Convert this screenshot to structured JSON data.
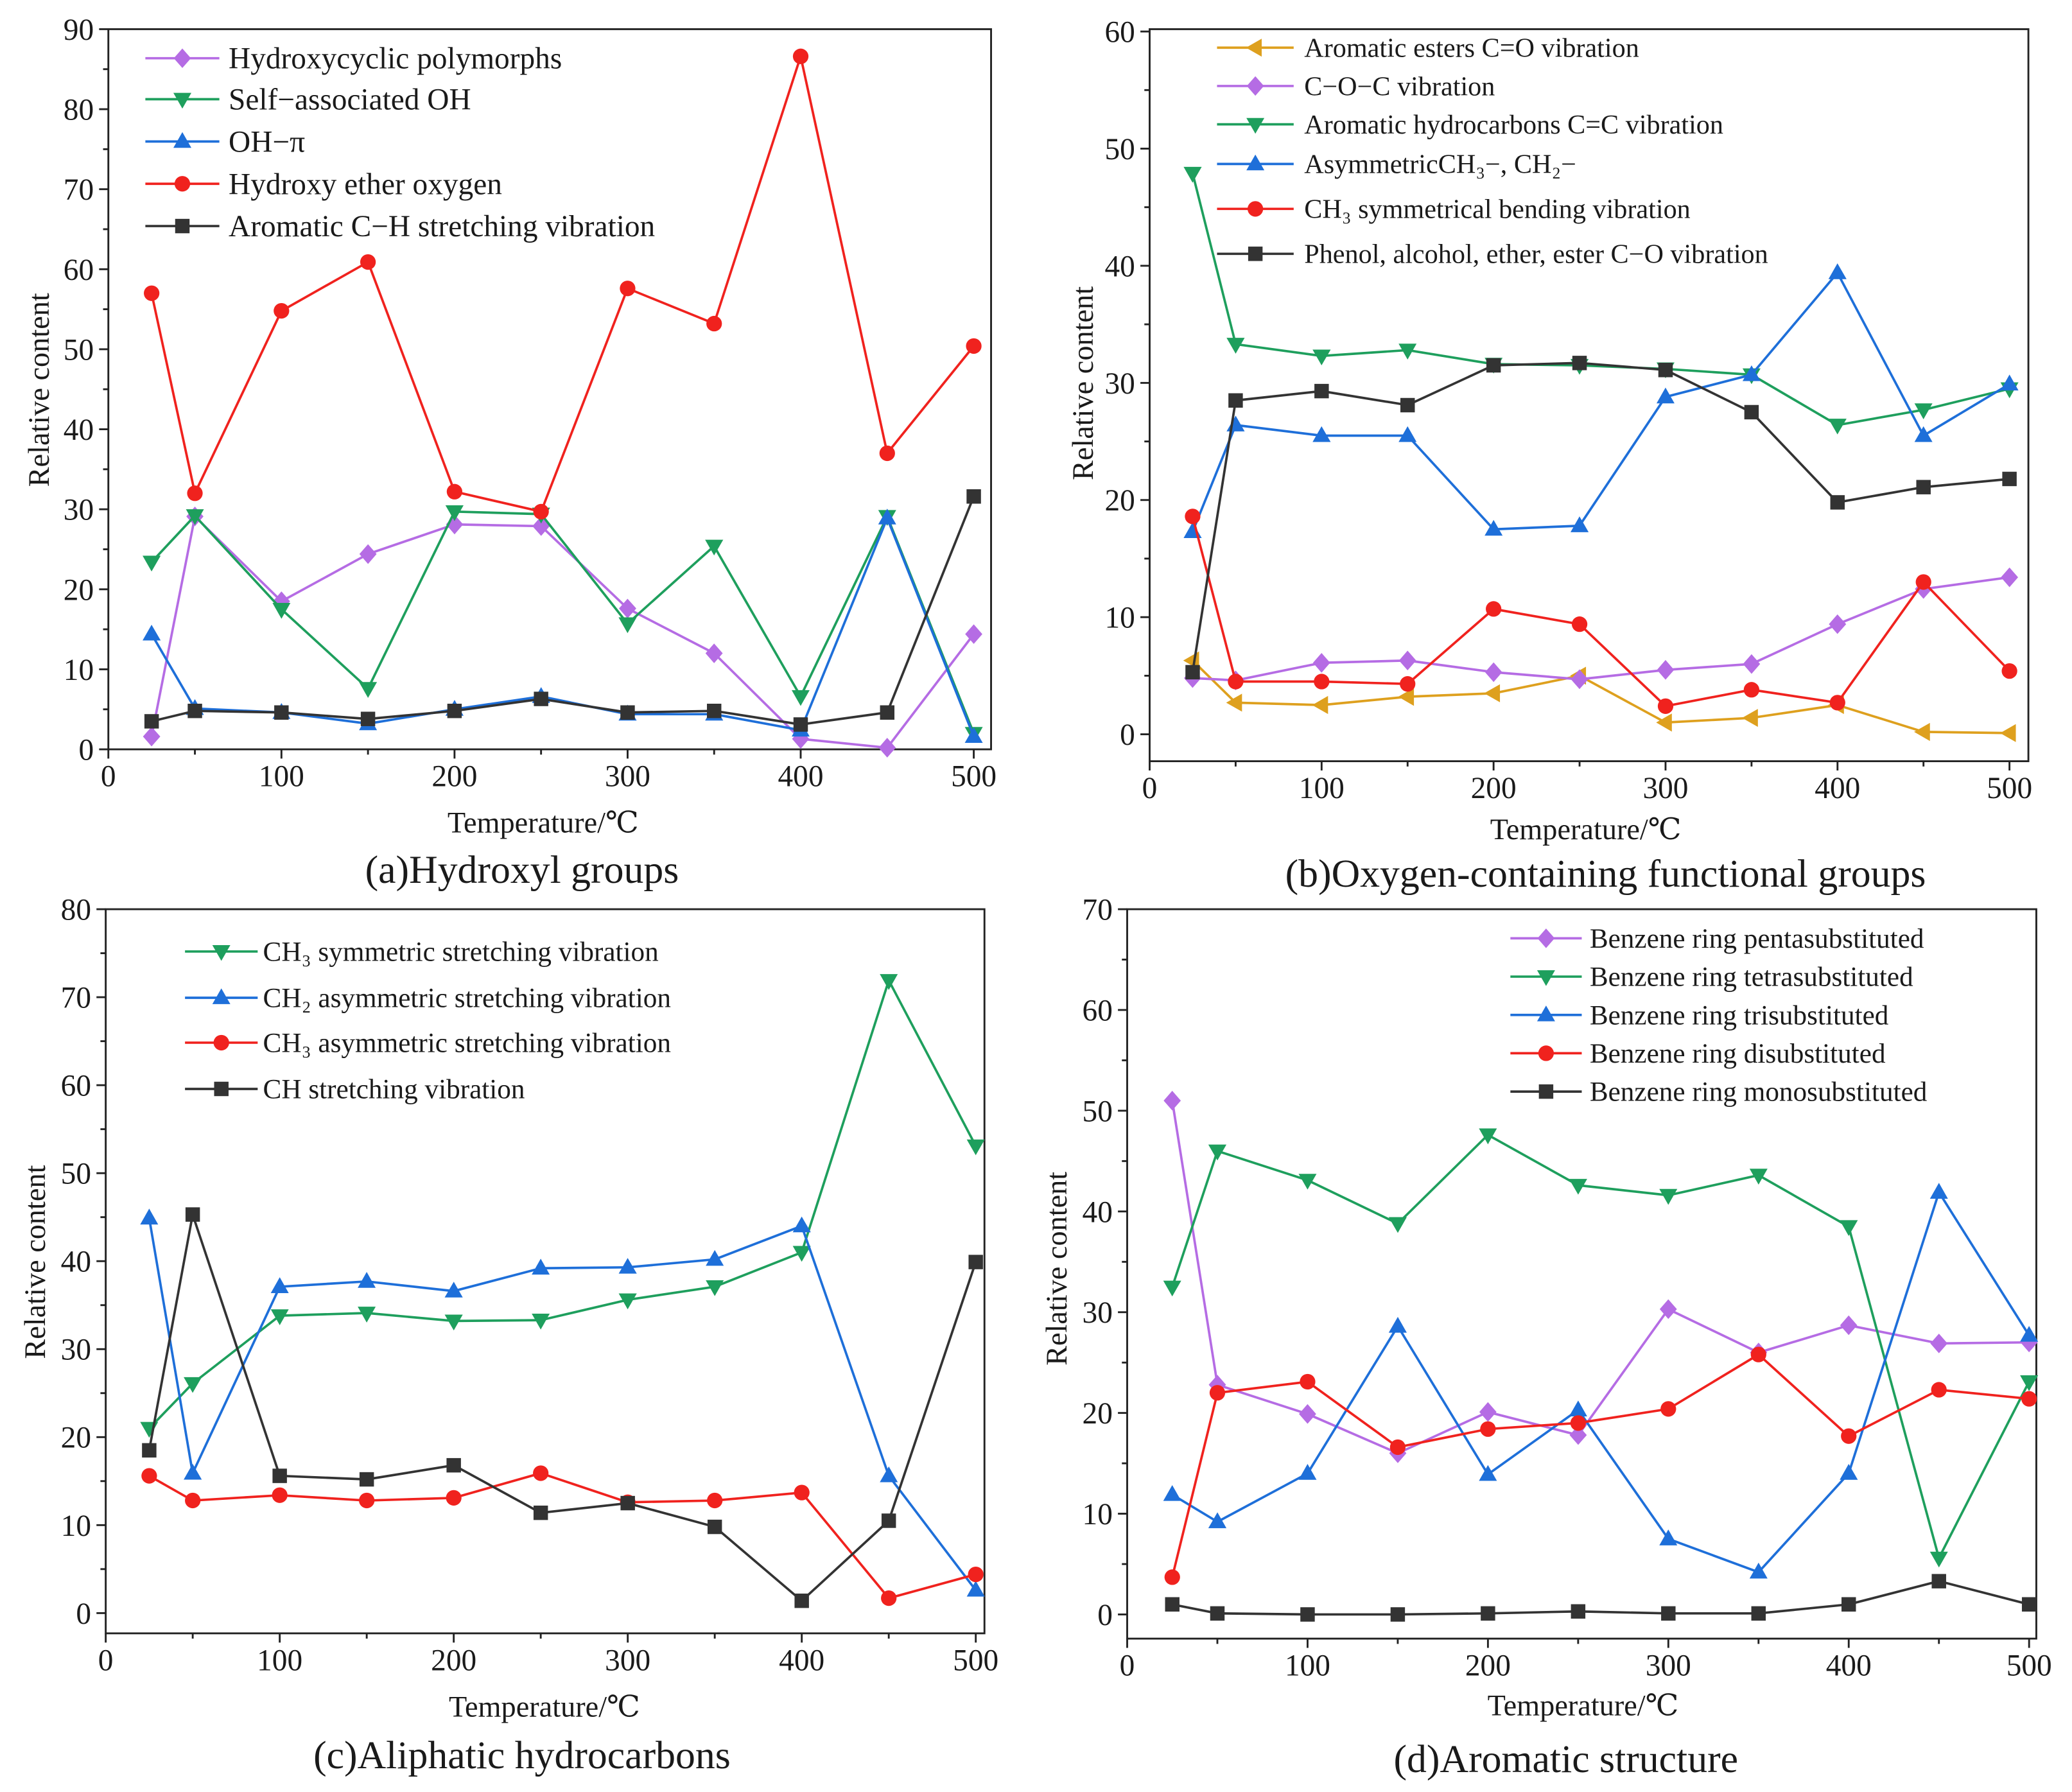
{
  "chart_data": [
    {
      "type": "line",
      "title": "(a)Hydroxyl groups",
      "xlabel": "Temperature/℃",
      "ylabel": "Relative content",
      "xlim": [
        0,
        510
      ],
      "ylim": [
        0,
        90
      ],
      "xticks": [
        0,
        100,
        200,
        300,
        400,
        500
      ],
      "yticks": [
        0,
        10,
        20,
        30,
        40,
        50,
        60,
        70,
        80,
        90
      ],
      "legend": "top-left",
      "x": [
        25,
        50,
        100,
        150,
        200,
        250,
        300,
        350,
        400,
        450,
        500
      ],
      "series": [
        {
          "name": "Hydroxycyclic polymorphs",
          "marker": "diamond",
          "color": "#B56CE4",
          "values": [
            1.6,
            29.1,
            18.5,
            24.4,
            28.1,
            27.9,
            17.6,
            12.0,
            1.3,
            0.2,
            14.4
          ]
        },
        {
          "name": "Self−associated OH",
          "marker": "triangle-down",
          "color": "#1E9F5D",
          "values": [
            23.4,
            29.2,
            17.5,
            7.6,
            29.7,
            29.4,
            15.7,
            25.4,
            6.6,
            29.1,
            2.0
          ]
        },
        {
          "name": "OH−π",
          "marker": "triangle-up",
          "color": "#1E6FD9",
          "values": [
            14.4,
            5.1,
            4.6,
            3.2,
            5.0,
            6.6,
            4.4,
            4.4,
            2.4,
            28.9,
            1.6
          ]
        },
        {
          "name": "Hydroxy ether oxygen",
          "marker": "circle",
          "color": "#F0221E",
          "values": [
            57.0,
            32.0,
            54.8,
            60.9,
            32.2,
            29.7,
            57.6,
            53.2,
            86.6,
            37.0,
            50.4
          ]
        },
        {
          "name": "Aromatic C−H stretching vibration",
          "marker": "square",
          "color": "#333333",
          "values": [
            3.5,
            4.8,
            4.6,
            3.8,
            4.8,
            6.3,
            4.6,
            4.8,
            3.1,
            4.6,
            31.6
          ]
        }
      ]
    },
    {
      "type": "line",
      "title": "(b)Oxygen-containing functional groups",
      "xlabel": "Temperature/℃",
      "ylabel": "Relative content",
      "xlim": [
        0,
        511
      ],
      "ylim": [
        -2.3,
        60.2
      ],
      "xticks": [
        0,
        100,
        200,
        300,
        400,
        500
      ],
      "yticks": [
        0,
        10,
        20,
        30,
        40,
        50,
        60
      ],
      "legend": "top-left",
      "x": [
        25,
        50,
        100,
        150,
        200,
        250,
        300,
        350,
        400,
        450,
        500
      ],
      "series": [
        {
          "name": "Aromatic esters C=O vibration",
          "marker": "triangle-left",
          "color": "#DEA01E",
          "values": [
            6.3,
            2.7,
            2.5,
            3.2,
            3.5,
            5.0,
            1.0,
            1.4,
            2.5,
            0.2,
            0.1
          ]
        },
        {
          "name": "C−O−C vibration",
          "marker": "diamond",
          "color": "#B56CE4",
          "values": [
            4.8,
            4.6,
            6.1,
            6.3,
            5.3,
            4.7,
            5.5,
            6.0,
            9.4,
            12.4,
            13.4
          ]
        },
        {
          "name": "Aromatic hydrocarbons C=C vibration",
          "marker": "triangle-down",
          "color": "#1E9F5D",
          "values": [
            47.9,
            33.3,
            32.3,
            32.8,
            31.6,
            31.5,
            31.2,
            30.7,
            26.4,
            27.7,
            29.5
          ]
        },
        {
          "name": "AsymmetricCH₃−, CH₂−",
          "marker": "triangle-up",
          "color": "#1E6FD9",
          "values": [
            17.3,
            26.4,
            25.5,
            25.5,
            17.5,
            17.8,
            28.8,
            30.7,
            39.4,
            25.5,
            29.9
          ]
        },
        {
          "name": "CH₃ symmetrical bending vibration",
          "marker": "circle",
          "color": "#F0221E",
          "values": [
            18.6,
            4.5,
            4.5,
            4.3,
            10.7,
            9.4,
            2.4,
            3.8,
            2.7,
            13.0,
            5.4
          ]
        },
        {
          "name": "Phenol, alcohol, ether, ester C−O vibration",
          "marker": "square",
          "color": "#333333",
          "values": [
            5.3,
            28.5,
            29.3,
            28.1,
            31.5,
            31.7,
            31.1,
            27.5,
            19.8,
            21.1,
            21.8
          ]
        }
      ]
    },
    {
      "type": "line",
      "title": "(c)Aliphatic hydrocarbons",
      "xlabel": "Temperature/℃",
      "ylabel": "Relative content",
      "xlim": [
        0,
        505
      ],
      "ylim": [
        -2.3,
        80
      ],
      "xticks": [
        0,
        100,
        200,
        300,
        400,
        500
      ],
      "yticks": [
        0,
        10,
        20,
        30,
        40,
        50,
        60,
        70,
        80
      ],
      "legend": "top-left",
      "x": [
        25,
        50,
        100,
        150,
        200,
        250,
        300,
        350,
        400,
        450,
        500
      ],
      "series": [
        {
          "name": "CH₃ symmetric stretching vibration",
          "marker": "triangle-down",
          "color": "#1E9F5D",
          "values": [
            21.0,
            26.1,
            33.8,
            34.1,
            33.2,
            33.3,
            35.6,
            37.1,
            41.0,
            71.9,
            53.1
          ]
        },
        {
          "name": "CH₂ asymmetric stretching vibration",
          "marker": "triangle-up",
          "color": "#1E6FD9",
          "values": [
            44.9,
            15.9,
            37.1,
            37.7,
            36.6,
            39.2,
            39.3,
            40.2,
            44.0,
            15.6,
            2.6
          ]
        },
        {
          "name": "CH₃ asymmetric stretching vibration",
          "marker": "circle",
          "color": "#F0221E",
          "values": [
            15.6,
            12.8,
            13.4,
            12.8,
            13.1,
            15.9,
            12.6,
            12.8,
            13.7,
            1.7,
            4.4
          ]
        },
        {
          "name": "CH stretching vibration",
          "marker": "square",
          "color": "#333333",
          "values": [
            18.5,
            45.3,
            15.6,
            15.2,
            16.8,
            11.4,
            12.5,
            9.8,
            1.4,
            10.5,
            39.9
          ]
        }
      ]
    },
    {
      "type": "line",
      "title": "(d)Aromatic structure",
      "xlabel": "Temperature/℃",
      "ylabel": "Relative content",
      "xlim": [
        0,
        504
      ],
      "ylim": [
        -2.4,
        70
      ],
      "xticks": [
        0,
        100,
        200,
        300,
        400,
        500
      ],
      "yticks": [
        0,
        10,
        20,
        30,
        40,
        50,
        60,
        70
      ],
      "legend": "top-right",
      "x": [
        25,
        50,
        100,
        150,
        200,
        250,
        300,
        350,
        400,
        450,
        500
      ],
      "series": [
        {
          "name": "Benzene ring pentasubstituted",
          "marker": "diamond",
          "color": "#B56CE4",
          "values": [
            51.0,
            22.8,
            19.9,
            16.0,
            20.1,
            17.8,
            30.3,
            26.0,
            28.7,
            26.9,
            27.0
          ]
        },
        {
          "name": "Benzene ring tetrasubstituted",
          "marker": "triangle-down",
          "color": "#1E9F5D",
          "values": [
            32.5,
            46.0,
            43.1,
            38.8,
            47.6,
            42.6,
            41.6,
            43.6,
            38.5,
            5.6,
            23.1
          ]
        },
        {
          "name": "Benzene ring trisubstituted",
          "marker": "triangle-up",
          "color": "#1E6FD9",
          "values": [
            11.9,
            9.2,
            14.0,
            28.6,
            13.9,
            20.3,
            7.5,
            4.2,
            14.0,
            41.9,
            27.7
          ]
        },
        {
          "name": "Benzene ring disubstituted",
          "marker": "circle",
          "color": "#F0221E",
          "values": [
            3.7,
            22.0,
            23.1,
            16.6,
            18.4,
            19.0,
            20.4,
            25.8,
            17.7,
            22.3,
            21.4
          ]
        },
        {
          "name": "Benzene ring monosubstituted",
          "marker": "square",
          "color": "#333333",
          "values": [
            1.0,
            0.1,
            0.0,
            0.0,
            0.1,
            0.3,
            0.1,
            0.1,
            1.0,
            3.3,
            1.0
          ]
        }
      ]
    }
  ]
}
